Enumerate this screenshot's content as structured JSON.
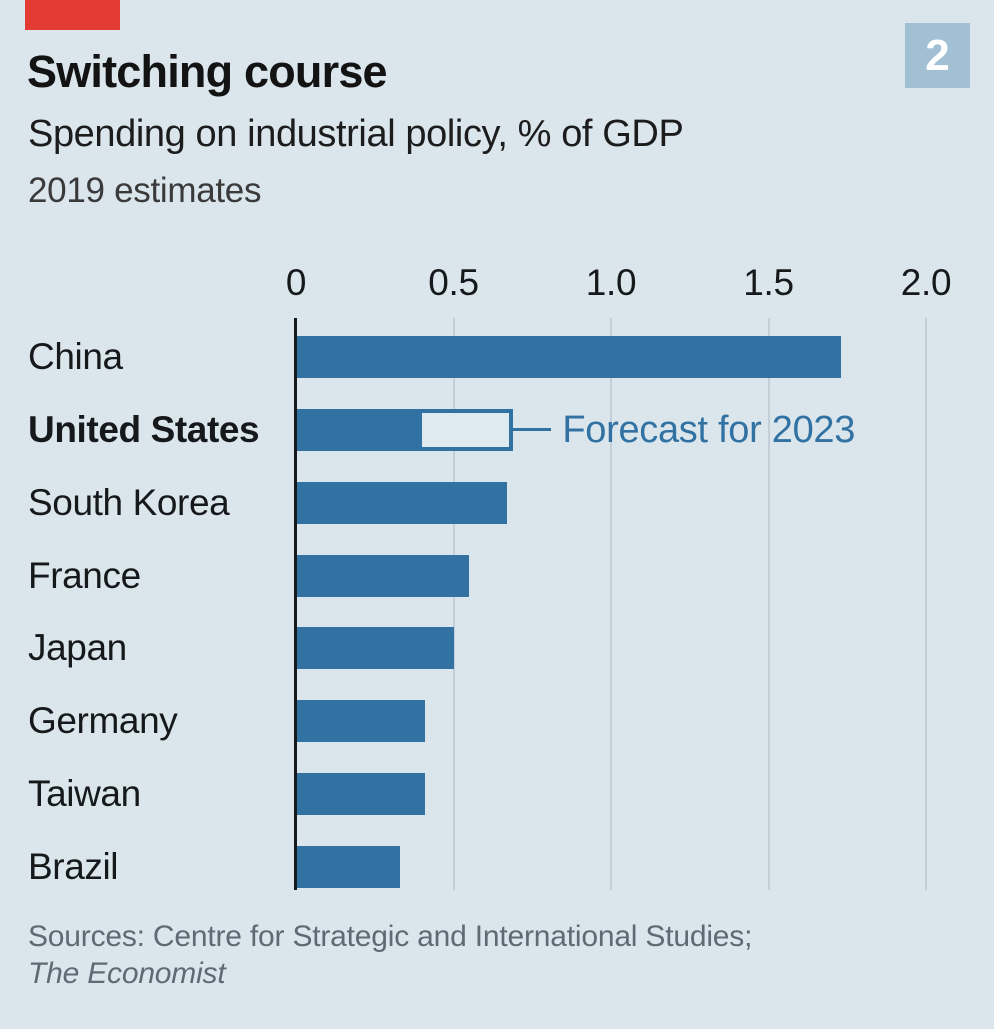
{
  "header": {
    "title": "Switching course",
    "subtitle": "Spending on industrial policy, % of GDP",
    "note": "2019 estimates",
    "figure_number": "2"
  },
  "theme": {
    "background": "#dbe5ec",
    "bar_blue": "#3172a3",
    "gridline": "#c3ced6",
    "axis_ink": "#16191b",
    "slug_red": "#e13b32",
    "badge_blue": "#a2c0d3",
    "muted_text": "#5d6b74"
  },
  "chart_data": {
    "type": "bar",
    "orientation": "horizontal",
    "title": "Switching course",
    "subtitle": "Spending on industrial policy, % of GDP",
    "note": "2019 estimates",
    "xlabel": "",
    "ylabel": "",
    "xlim": [
      0,
      2.0
    ],
    "x_ticks": [
      0,
      0.5,
      1.0,
      1.5,
      2.0
    ],
    "x_tick_labels": [
      "0",
      "0.5",
      "1.0",
      "1.5",
      "2.0"
    ],
    "grid": "vertical-gridlines-on",
    "legend_position": "inline-annotation",
    "categories": [
      "China",
      "United States",
      "South Korea",
      "France",
      "Japan",
      "Germany",
      "Taiwan",
      "Brazil"
    ],
    "values": [
      1.73,
      0.39,
      0.67,
      0.55,
      0.5,
      0.41,
      0.41,
      0.33
    ],
    "highlight_category": "United States",
    "forecast": {
      "category": "United States",
      "value": 0.69,
      "label": "Forecast for 2023"
    }
  },
  "footer": {
    "sources_line1": "Sources: Centre for Strategic and International Studies;",
    "sources_line2": "The Economist"
  }
}
